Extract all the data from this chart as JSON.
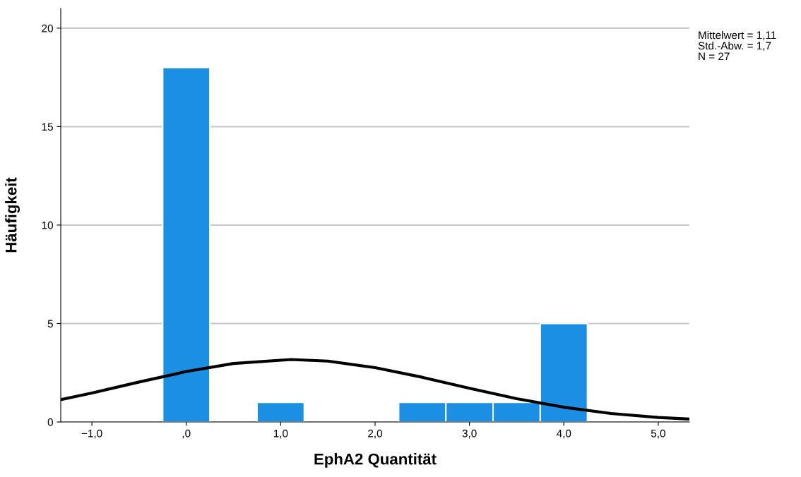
{
  "chart_data": {
    "type": "histogram",
    "xlabel": "EphA2 Quantität",
    "ylabel": "Häufigkeit",
    "bins": [
      -0.25,
      0.25,
      0.75,
      1.25,
      1.75,
      2.25,
      2.75,
      3.25,
      3.75,
      4.25
    ],
    "values": [
      18,
      0,
      1,
      0,
      0,
      1,
      1,
      1,
      5
    ],
    "color": "#1a8fe3",
    "series": [
      {
        "type": "line",
        "color": "#000000",
        "x": [
          -1.33,
          -1,
          -0.5,
          0,
          0.5,
          1.11,
          1.5,
          2,
          2.5,
          3,
          3.5,
          4,
          4.5,
          5,
          5.33
        ],
        "values": [
          1.13,
          1.47,
          2.03,
          2.56,
          2.97,
          3.17,
          3.09,
          2.76,
          2.27,
          1.71,
          1.18,
          0.75,
          0.43,
          0.23,
          0.15
        ]
      }
    ],
    "xlim": [
      -1.33,
      5.33
    ],
    "xticks": [
      {
        "value": -1,
        "label": "−1,0"
      },
      {
        "value": 0,
        "label": ",0"
      },
      {
        "value": 1,
        "label": "1,0"
      },
      {
        "value": 2,
        "label": "2,0"
      },
      {
        "value": 3,
        "label": "3,0"
      },
      {
        "value": 4,
        "label": "4,0"
      },
      {
        "value": 5,
        "label": "5,0"
      }
    ],
    "ylim": [
      0,
      21
    ],
    "yticks": [
      0,
      5,
      10,
      15,
      20
    ],
    "grid": "y",
    "annotations": [
      "Mittelwert = 1,11",
      "Std.-Abw. = 1,7",
      "N = 27"
    ]
  }
}
